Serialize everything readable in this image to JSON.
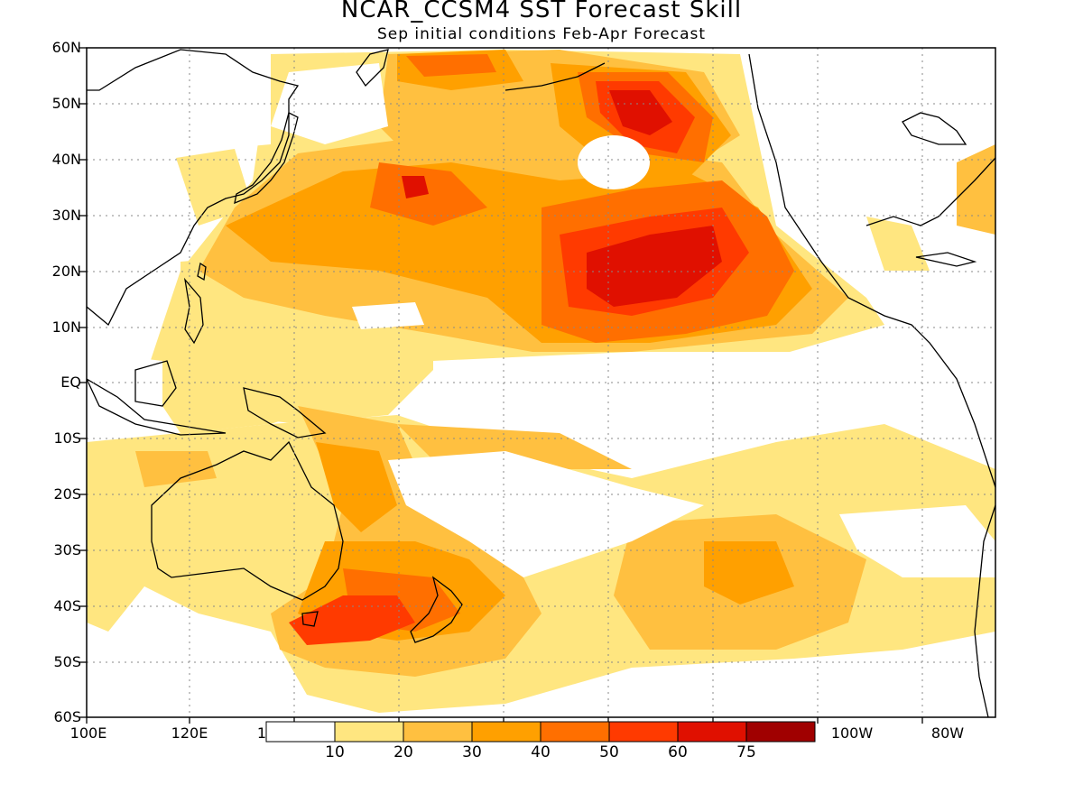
{
  "title": "NCAR_CCSM4 SST Forecast Skill",
  "subtitle": "Sep initial conditions  Feb-Apr Forecast",
  "lat_labels": [
    "60N",
    "50N",
    "40N",
    "30N",
    "20N",
    "10N",
    "EQ",
    "10S",
    "20S",
    "30S",
    "40S",
    "50S",
    "60S"
  ],
  "lon_labels": [
    "100E",
    "120E",
    "1",
    "100W",
    "80W"
  ],
  "colorbar": {
    "levels": [
      "10",
      "20",
      "30",
      "40",
      "50",
      "60",
      "75"
    ],
    "colors": [
      "#ffffff",
      "#ffe680",
      "#ffc040",
      "#ffa000",
      "#ff6f00",
      "#ff3a00",
      "#e01000",
      "#a00000"
    ]
  },
  "map_colors": {
    "land_outline": "#000000",
    "ocean_white": "#ffffff",
    "level_10_20": "#ffe680",
    "level_20_30": "#ffc040",
    "level_30_40": "#ffa000",
    "level_40_50": "#ff6f00",
    "level_50_60": "#ff3a00",
    "level_60_75": "#e01000"
  }
}
